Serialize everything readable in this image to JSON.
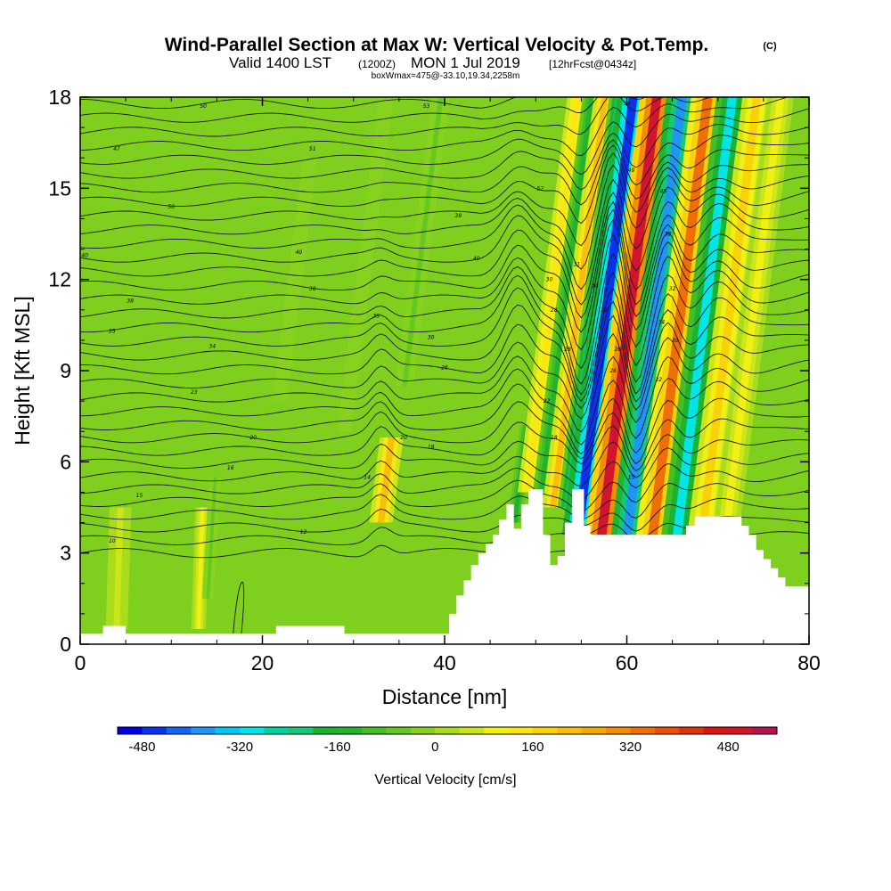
{
  "title": {
    "main": "Wind-Parallel Section at Max W: Vertical Velocity & Pot.Temp.",
    "copyright": "(C)",
    "valid_prefix": "Valid 1400 LST",
    "valid_utc": "(1200Z)",
    "valid_date": "MON 1 Jul 2019",
    "forecast": "[12hrFcst@0434z]",
    "box_info": "boxWmax=475@-33.10,19.34,2258m"
  },
  "chart_data": {
    "type": "heatmap",
    "xlabel": "Distance [nm]",
    "ylabel": "Height [Kft MSL]",
    "xlim": [
      0,
      80
    ],
    "ylim": [
      0,
      18
    ],
    "x_ticks": [
      0,
      20,
      40,
      60,
      80
    ],
    "y_ticks": [
      0,
      3,
      6,
      9,
      12,
      15,
      18
    ],
    "terrain": [
      [
        0,
        0.35
      ],
      [
        2.5,
        0.35
      ],
      [
        2.5,
        0.6
      ],
      [
        5,
        0.6
      ],
      [
        5,
        0.35
      ],
      [
        21.5,
        0.35
      ],
      [
        21.5,
        0.6
      ],
      [
        29,
        0.6
      ],
      [
        29,
        0.35
      ],
      [
        40.5,
        0.35
      ],
      [
        40.5,
        1.0
      ],
      [
        41.3,
        1.0
      ],
      [
        41.3,
        1.6
      ],
      [
        42.1,
        1.6
      ],
      [
        42.1,
        2.1
      ],
      [
        42.9,
        2.1
      ],
      [
        42.9,
        2.6
      ],
      [
        43.7,
        2.6
      ],
      [
        43.7,
        3.0
      ],
      [
        44.5,
        3.0
      ],
      [
        44.5,
        3.3
      ],
      [
        45.3,
        3.3
      ],
      [
        45.3,
        3.6
      ],
      [
        46,
        3.6
      ],
      [
        46,
        4.1
      ],
      [
        46.8,
        4.1
      ],
      [
        46.8,
        4.6
      ],
      [
        47.6,
        4.6
      ],
      [
        47.6,
        3.8
      ],
      [
        48.4,
        3.8
      ],
      [
        48.4,
        4.6
      ],
      [
        49.2,
        4.6
      ],
      [
        49.2,
        5.1
      ],
      [
        50.8,
        5.1
      ],
      [
        50.8,
        3.6
      ],
      [
        51.6,
        3.6
      ],
      [
        51.6,
        2.6
      ],
      [
        52.4,
        2.6
      ],
      [
        52.4,
        2.9
      ],
      [
        53.2,
        2.9
      ],
      [
        53.2,
        4.0
      ],
      [
        54.0,
        4.0
      ],
      [
        54.0,
        5.1
      ],
      [
        55.3,
        5.1
      ],
      [
        55.3,
        3.9
      ],
      [
        56.0,
        3.9
      ],
      [
        56.0,
        3.6
      ],
      [
        66.5,
        3.6
      ],
      [
        66.5,
        3.9
      ],
      [
        67.5,
        3.9
      ],
      [
        67.5,
        4.2
      ],
      [
        72.6,
        4.2
      ],
      [
        72.6,
        3.9
      ],
      [
        73.4,
        3.9
      ],
      [
        73.4,
        3.6
      ],
      [
        74.2,
        3.6
      ],
      [
        74.2,
        3.1
      ],
      [
        75,
        3.1
      ],
      [
        75,
        2.8
      ],
      [
        75.8,
        2.8
      ],
      [
        75.8,
        2.5
      ],
      [
        76.6,
        2.5
      ],
      [
        76.6,
        2.2
      ],
      [
        77.4,
        2.2
      ],
      [
        77.4,
        1.9
      ],
      [
        80,
        1.9
      ]
    ],
    "w_bands": [
      {
        "x": 32.8,
        "y1": 4.0,
        "y2": 6.8,
        "w": 1.6,
        "value": 200
      },
      {
        "x": 47.5,
        "y1": 4.0,
        "y2": 7.2,
        "w": 1.0,
        "value": -180
      },
      {
        "x": 48.5,
        "y1": 5.0,
        "y2": 18.0,
        "w": 1.4,
        "value": 150
      },
      {
        "x": 50.0,
        "y1": 5.0,
        "y2": 18.0,
        "w": 1.2,
        "value": -150
      },
      {
        "x": 51.5,
        "y1": 4.5,
        "y2": 18.0,
        "w": 1.5,
        "value": 200
      },
      {
        "x": 53.0,
        "y1": 4.5,
        "y2": 18.0,
        "w": 1.3,
        "value": -220
      },
      {
        "x": 54.6,
        "y1": 3.6,
        "y2": 18.0,
        "w": 2.2,
        "value": -480
      },
      {
        "x": 57.2,
        "y1": 3.6,
        "y2": 18.0,
        "w": 2.3,
        "value": 480
      },
      {
        "x": 60.0,
        "y1": 3.6,
        "y2": 18.0,
        "w": 2.2,
        "value": -400
      },
      {
        "x": 62.8,
        "y1": 3.6,
        "y2": 18.0,
        "w": 2.3,
        "value": 320
      },
      {
        "x": 65.5,
        "y1": 3.6,
        "y2": 18.0,
        "w": 2.2,
        "value": -300
      },
      {
        "x": 68.2,
        "y1": 3.6,
        "y2": 18.0,
        "w": 2.0,
        "value": 180
      },
      {
        "x": 70.8,
        "y1": 4.0,
        "y2": 18.0,
        "w": 1.8,
        "value": 100
      },
      {
        "x": 13.0,
        "y1": 0.5,
        "y2": 4.5,
        "w": 1.0,
        "value": 80
      },
      {
        "x": 14.0,
        "y1": 1.5,
        "y2": 5.5,
        "w": 0.8,
        "value": -60
      },
      {
        "x": 4.0,
        "y1": 0.5,
        "y2": 4.5,
        "w": 1.5,
        "value": 40
      },
      {
        "x": 27.5,
        "y1": 7.0,
        "y2": 18.0,
        "w": 1.0,
        "value": -40
      },
      {
        "x": 33.5,
        "y1": 8.5,
        "y2": 18.0,
        "w": 1.2,
        "value": -50
      },
      {
        "x": 20.0,
        "y1": 8.0,
        "y2": 16.0,
        "w": 1.0,
        "value": -30
      }
    ],
    "isentrope_labels": [
      {
        "x": 13.5,
        "y": 17.7,
        "text": "50"
      },
      {
        "x": 38.0,
        "y": 17.7,
        "text": "53"
      },
      {
        "x": 60.0,
        "y": 17.8,
        "text": "50"
      },
      {
        "x": 4.0,
        "y": 16.3,
        "text": "47"
      },
      {
        "x": 25.5,
        "y": 16.3,
        "text": "51"
      },
      {
        "x": 10.0,
        "y": 14.4,
        "text": "50"
      },
      {
        "x": 41.5,
        "y": 14.1,
        "text": "39"
      },
      {
        "x": 50.5,
        "y": 15.0,
        "text": "52"
      },
      {
        "x": 60.5,
        "y": 15.6,
        "text": "49"
      },
      {
        "x": 64.0,
        "y": 14.9,
        "text": "45"
      },
      {
        "x": 0.5,
        "y": 12.8,
        "text": "40"
      },
      {
        "x": 24.0,
        "y": 12.9,
        "text": "40"
      },
      {
        "x": 43.5,
        "y": 12.7,
        "text": "40"
      },
      {
        "x": 64.5,
        "y": 13.5,
        "text": "38"
      },
      {
        "x": 5.5,
        "y": 11.3,
        "text": "38"
      },
      {
        "x": 25.5,
        "y": 11.7,
        "text": "38"
      },
      {
        "x": 54.5,
        "y": 12.5,
        "text": "31"
      },
      {
        "x": 51.5,
        "y": 12.0,
        "text": "30"
      },
      {
        "x": 56.5,
        "y": 11.8,
        "text": "34"
      },
      {
        "x": 65.0,
        "y": 11.7,
        "text": "32"
      },
      {
        "x": 3.5,
        "y": 10.3,
        "text": "35"
      },
      {
        "x": 32.5,
        "y": 10.8,
        "text": "35"
      },
      {
        "x": 38.5,
        "y": 10.1,
        "text": "30"
      },
      {
        "x": 52.0,
        "y": 11.0,
        "text": "28"
      },
      {
        "x": 57.5,
        "y": 11.0,
        "text": "30"
      },
      {
        "x": 63.8,
        "y": 10.6,
        "text": "34"
      },
      {
        "x": 14.5,
        "y": 9.8,
        "text": "34"
      },
      {
        "x": 53.5,
        "y": 9.7,
        "text": "28"
      },
      {
        "x": 59.0,
        "y": 9.7,
        "text": "26"
      },
      {
        "x": 65.3,
        "y": 10.0,
        "text": "30"
      },
      {
        "x": 40.0,
        "y": 9.1,
        "text": "26"
      },
      {
        "x": 58.5,
        "y": 9.0,
        "text": "26"
      },
      {
        "x": 63.5,
        "y": 8.7,
        "text": "22"
      },
      {
        "x": 12.5,
        "y": 8.3,
        "text": "23"
      },
      {
        "x": 51.2,
        "y": 8.0,
        "text": "22"
      },
      {
        "x": 19.0,
        "y": 6.8,
        "text": "20"
      },
      {
        "x": 35.5,
        "y": 6.8,
        "text": "20"
      },
      {
        "x": 38.5,
        "y": 6.5,
        "text": "18"
      },
      {
        "x": 52.0,
        "y": 6.8,
        "text": "18"
      },
      {
        "x": 16.5,
        "y": 5.8,
        "text": "16"
      },
      {
        "x": 31.5,
        "y": 5.5,
        "text": "14"
      },
      {
        "x": 60.5,
        "y": 5.5,
        "text": "15"
      },
      {
        "x": 6.5,
        "y": 4.9,
        "text": "15"
      },
      {
        "x": 24.5,
        "y": 3.7,
        "text": "12"
      },
      {
        "x": 3.5,
        "y": 3.4,
        "text": "10"
      }
    ],
    "colorbar": {
      "label": "Vertical Velocity [cm/s]",
      "min": -520,
      "max": 560,
      "step": 40,
      "tick_values": [
        -480,
        -320,
        -160,
        0,
        160,
        320,
        480
      ],
      "tick_labels": [
        "-480",
        "-320",
        "-160",
        "0",
        "160",
        "320",
        "480"
      ],
      "colors": [
        "#0000e0",
        "#0a32ee",
        "#1466f5",
        "#1e96f8",
        "#00c8f0",
        "#00e6e6",
        "#00d2a0",
        "#14c878",
        "#19b432",
        "#23b42d",
        "#46be23",
        "#64c81e",
        "#87d21e",
        "#aadc1e",
        "#cde619",
        "#f0f014",
        "#fae614",
        "#fad20a",
        "#fabe0a",
        "#f5aa05",
        "#f58c05",
        "#f06e05",
        "#eb500a",
        "#e1320f",
        "#dc1414",
        "#d2142d",
        "#b4144b"
      ]
    }
  }
}
